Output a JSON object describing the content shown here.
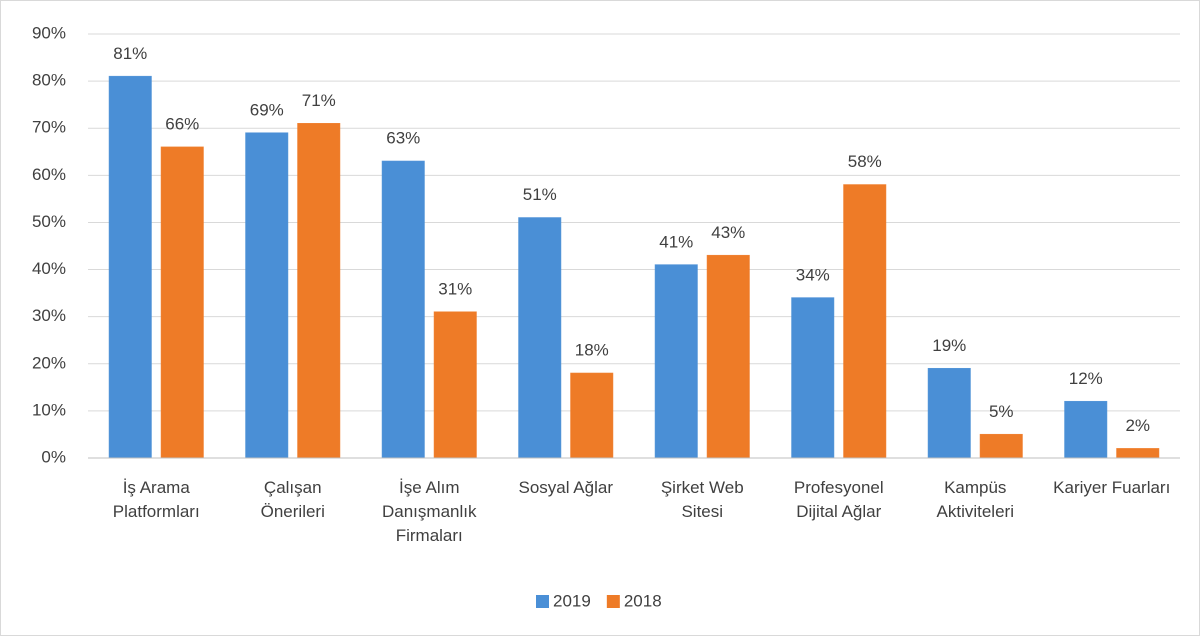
{
  "chart_data": {
    "type": "bar",
    "categories": [
      "İş Arama Platformları",
      "Çalışan Önerileri",
      "İşe Alım Danışmanlık Firmaları",
      "Sosyal Ağlar",
      "Şirket Web Sitesi",
      "Profesyonel Dijital Ağlar",
      "Kampüs Aktiviteleri",
      "Kariyer Fuarları"
    ],
    "series": [
      {
        "name": "2019",
        "color": "#4a8fd6",
        "values": [
          81,
          69,
          63,
          51,
          41,
          34,
          19,
          12
        ],
        "value_labels": [
          "81%",
          "69%",
          "63%",
          "51%",
          "41%",
          "34%",
          "19%",
          "12%"
        ]
      },
      {
        "name": "2018",
        "color": "#ee7b27",
        "values": [
          66,
          71,
          31,
          18,
          43,
          58,
          5,
          2
        ],
        "value_labels": [
          "66%",
          "71%",
          "31%",
          "18%",
          "43%",
          "58%",
          "5%",
          "2%"
        ]
      }
    ],
    "ylim": [
      0,
      90
    ],
    "yticks": [
      {
        "value": 0,
        "label": "0%"
      },
      {
        "value": 10,
        "label": "10%"
      },
      {
        "value": 20,
        "label": "20%"
      },
      {
        "value": 30,
        "label": "30%"
      },
      {
        "value": 40,
        "label": "40%"
      },
      {
        "value": 50,
        "label": "50%"
      },
      {
        "value": 60,
        "label": "60%"
      },
      {
        "value": 70,
        "label": "70%"
      },
      {
        "value": 80,
        "label": "80%"
      },
      {
        "value": 90,
        "label": "90%"
      }
    ],
    "grid": true,
    "legend": "bottom"
  }
}
